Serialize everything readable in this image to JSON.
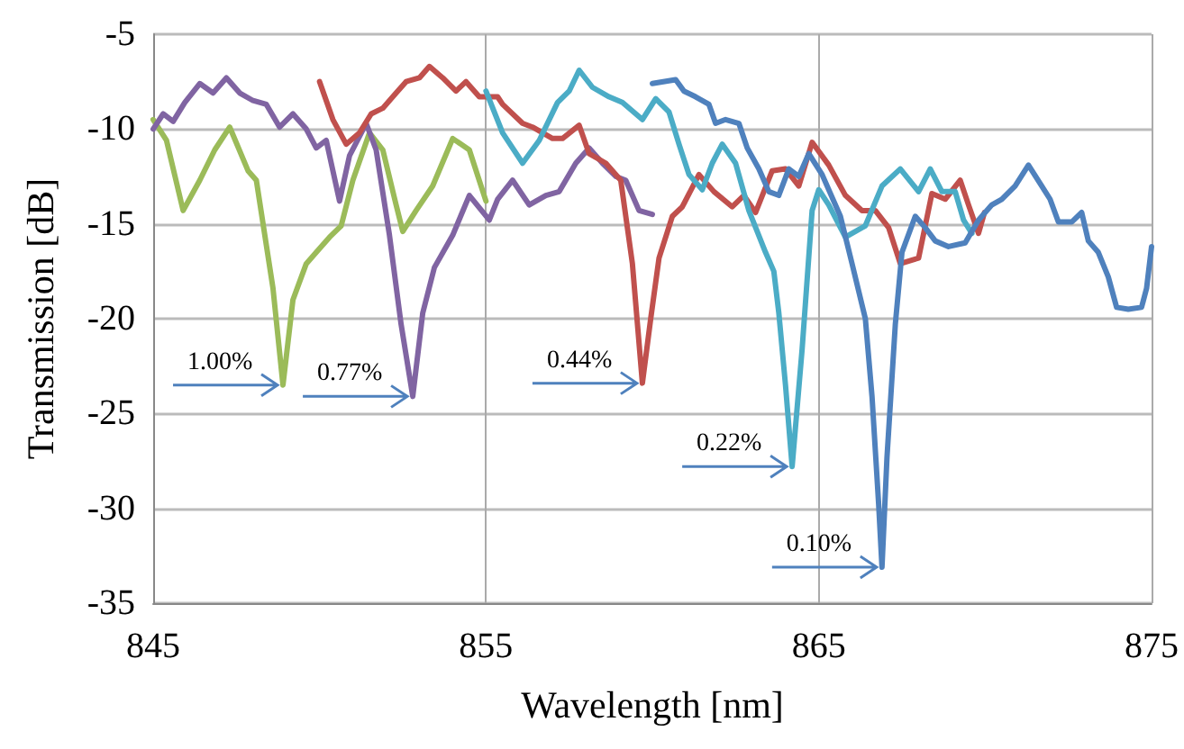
{
  "chart_data": {
    "type": "line",
    "xlabel": "Wavelength [nm]",
    "ylabel": "Transmission [dB]",
    "xlim": [
      845,
      875
    ],
    "xticks": [
      845,
      855,
      865,
      875
    ],
    "ylim": [
      -35,
      -5
    ],
    "yticks": [
      -35,
      -30,
      -25,
      -20,
      -15,
      -10,
      -5
    ],
    "grid": true,
    "marker": "none",
    "line_style": "solid",
    "series": [
      {
        "color": "#9bbb59",
        "x": [
          845.0,
          845.4,
          845.9,
          846.4,
          846.85,
          847.3,
          847.85,
          848.1,
          848.6,
          848.9,
          849.2,
          849.6,
          849.9,
          850.3,
          850.65,
          851.0,
          851.5,
          851.9,
          852.3,
          852.5,
          852.9,
          853.4,
          854.0,
          854.5,
          855.0
        ],
        "values": [
          -9.5,
          -10.6,
          -14.3,
          -12.7,
          -11.1,
          -9.9,
          -12.2,
          -12.7,
          -18.4,
          -23.5,
          -19.0,
          -17.1,
          -16.5,
          -15.7,
          -15.1,
          -12.7,
          -10.2,
          -11.1,
          -14.0,
          -15.4,
          -14.3,
          -13.0,
          -10.5,
          -11.1,
          -13.8
        ]
      },
      {
        "color": "#8064a2",
        "x": [
          845.0,
          845.3,
          845.6,
          845.95,
          846.4,
          846.8,
          847.2,
          847.6,
          848.0,
          848.4,
          848.8,
          849.2,
          849.6,
          849.9,
          850.2,
          850.6,
          850.9,
          851.4,
          851.7,
          852.1,
          852.45,
          852.8,
          853.1,
          853.45,
          854.0,
          854.5,
          855.1,
          855.35,
          855.8,
          856.3,
          856.8,
          857.2,
          857.7,
          858.1,
          858.5,
          858.9,
          859.2,
          859.6,
          860.0
        ],
        "values": [
          -10.0,
          -9.2,
          -9.6,
          -8.6,
          -7.6,
          -8.1,
          -7.3,
          -8.1,
          -8.5,
          -8.7,
          -9.9,
          -9.2,
          -10.0,
          -11.0,
          -10.6,
          -13.8,
          -11.4,
          -9.7,
          -11.1,
          -15.6,
          -20.3,
          -24.1,
          -19.7,
          -17.3,
          -15.6,
          -13.5,
          -14.8,
          -13.7,
          -12.7,
          -14.0,
          -13.5,
          -13.3,
          -11.8,
          -11.0,
          -11.8,
          -12.5,
          -12.7,
          -14.3,
          -14.5
        ]
      },
      {
        "color": "#c0504d",
        "x": [
          850.0,
          850.4,
          850.8,
          851.2,
          851.55,
          851.9,
          852.3,
          852.6,
          853.0,
          853.3,
          853.7,
          854.1,
          854.4,
          854.8,
          855.35,
          855.5,
          856.1,
          856.4,
          857.0,
          857.3,
          857.8,
          858.1,
          858.6,
          859.05,
          859.4,
          859.7,
          859.95,
          860.2,
          860.6,
          860.9,
          861.4,
          861.85,
          862.4,
          862.75,
          863.1,
          863.6,
          864.0,
          864.4,
          864.8,
          865.3,
          865.8,
          866.3,
          866.7,
          867.1,
          867.45,
          868.0,
          868.4,
          868.8,
          869.25,
          869.5,
          869.8,
          869.98
        ],
        "values": [
          -7.5,
          -9.5,
          -10.8,
          -10.2,
          -9.2,
          -8.9,
          -8.1,
          -7.5,
          -7.3,
          -6.7,
          -7.3,
          -8.0,
          -7.5,
          -8.3,
          -8.3,
          -8.7,
          -9.7,
          -9.9,
          -10.5,
          -10.5,
          -9.8,
          -11.3,
          -11.8,
          -12.7,
          -17.1,
          -23.4,
          -20.0,
          -16.8,
          -14.6,
          -14.1,
          -12.4,
          -13.3,
          -14.1,
          -13.5,
          -14.4,
          -12.2,
          -12.1,
          -13.0,
          -10.7,
          -11.9,
          -13.5,
          -14.3,
          -14.3,
          -15.2,
          -17.1,
          -16.8,
          -13.4,
          -13.7,
          -12.7,
          -14.0,
          -15.5,
          -14.4
        ]
      },
      {
        "color": "#4bacc6",
        "x": [
          855.0,
          855.5,
          856.1,
          856.6,
          857.15,
          857.5,
          857.8,
          858.2,
          858.7,
          859.1,
          859.7,
          860.1,
          860.5,
          860.8,
          861.1,
          861.5,
          861.8,
          862.1,
          862.5,
          862.9,
          863.4,
          863.65,
          863.8,
          864.0,
          864.2,
          864.5,
          864.8,
          865.0,
          865.3,
          865.8,
          866.4,
          866.9,
          867.45,
          868.0,
          868.35,
          868.7,
          869.1,
          869.35,
          869.6
        ],
        "values": [
          -8.0,
          -10.2,
          -11.8,
          -10.6,
          -8.6,
          -8.0,
          -6.9,
          -7.8,
          -8.3,
          -8.6,
          -9.5,
          -8.4,
          -9.1,
          -10.8,
          -12.4,
          -13.2,
          -11.8,
          -10.8,
          -11.8,
          -14.3,
          -16.5,
          -17.5,
          -19.7,
          -23.5,
          -27.8,
          -21.6,
          -14.3,
          -13.2,
          -14.0,
          -15.7,
          -15.1,
          -13.0,
          -12.1,
          -13.3,
          -12.1,
          -13.3,
          -13.3,
          -14.8,
          -15.5
        ]
      },
      {
        "color": "#4f81bd",
        "x": [
          860.0,
          860.7,
          860.95,
          861.3,
          861.7,
          861.9,
          862.2,
          862.6,
          862.85,
          863.2,
          863.5,
          863.8,
          864.1,
          864.4,
          864.7,
          865.1,
          865.65,
          866.0,
          866.4,
          866.6,
          866.8,
          866.9,
          867.05,
          867.3,
          867.5,
          867.9,
          868.2,
          868.5,
          868.9,
          869.4,
          869.8,
          870.2,
          870.5,
          870.9,
          871.3,
          871.7,
          871.95,
          872.2,
          872.6,
          872.9,
          873.1,
          873.4,
          873.7,
          873.95,
          874.3,
          874.7,
          874.85,
          875.0
        ],
        "values": [
          -7.6,
          -7.4,
          -8.0,
          -8.3,
          -8.7,
          -9.7,
          -9.5,
          -9.7,
          -11.0,
          -12.1,
          -13.3,
          -13.5,
          -12.1,
          -12.5,
          -11.3,
          -12.4,
          -14.6,
          -17.1,
          -20.0,
          -24.1,
          -29.8,
          -33.1,
          -27.3,
          -20.3,
          -16.5,
          -14.6,
          -15.2,
          -15.9,
          -16.2,
          -16.0,
          -14.8,
          -14.0,
          -13.7,
          -13.0,
          -11.9,
          -13.0,
          -13.7,
          -14.9,
          -14.9,
          -14.4,
          -15.9,
          -16.5,
          -17.8,
          -19.4,
          -19.5,
          -19.4,
          -18.4,
          -16.2
        ]
      }
    ],
    "annotations": [
      {
        "text": "1.00%",
        "x": 848.9,
        "y": -23.5
      },
      {
        "text": "0.77%",
        "x": 852.8,
        "y": -24.1
      },
      {
        "text": "0.44%",
        "x": 859.7,
        "y": -23.4
      },
      {
        "text": "0.22%",
        "x": 864.2,
        "y": -27.8
      },
      {
        "text": "0.10%",
        "x": 866.9,
        "y": -33.1
      }
    ]
  }
}
